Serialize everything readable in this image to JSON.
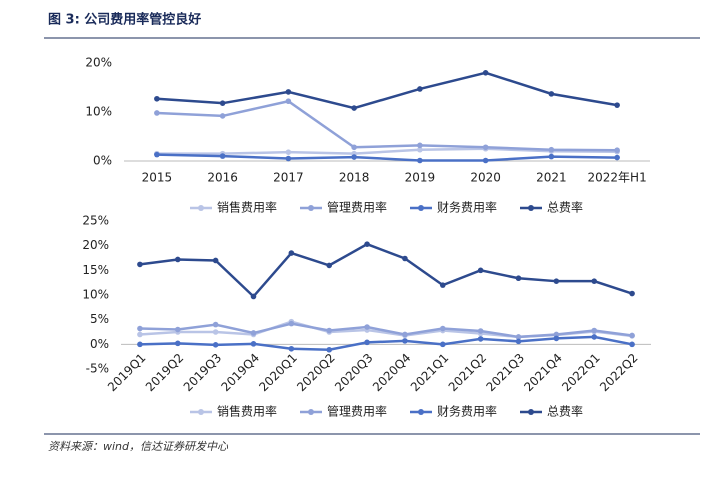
{
  "title": "图 3: 公司费用率管控良好",
  "source": "资料来源：wind，信达证券研发中心",
  "chart_data": [
    {
      "type": "line",
      "categories": [
        "2015",
        "2016",
        "2017",
        "2018",
        "2019",
        "2020",
        "2021",
        "2022年H1"
      ],
      "ylim": [
        0,
        20
      ],
      "yticks": [
        {
          "value": 0,
          "label": "0%"
        },
        {
          "value": 10,
          "label": "10%"
        },
        {
          "value": 20,
          "label": "20%"
        }
      ],
      "legend": "bottom",
      "series": [
        {
          "name": "销售费用率",
          "color": "#b9c4e6",
          "values": [
            1.5,
            1.5,
            1.8,
            1.5,
            2.3,
            2.5,
            2.0,
            1.9
          ]
        },
        {
          "name": "管理费用率",
          "color": "#8fa1d8",
          "values": [
            9.8,
            9.2,
            12.2,
            2.8,
            3.2,
            2.8,
            2.3,
            2.2
          ]
        },
        {
          "name": "财务费用率",
          "color": "#4a70c6",
          "values": [
            1.3,
            1.0,
            0.5,
            0.8,
            0.1,
            0.1,
            0.9,
            0.7
          ]
        },
        {
          "name": "总费率",
          "color": "#2d4a8e",
          "values": [
            12.7,
            11.8,
            14.1,
            10.8,
            14.7,
            18.0,
            13.7,
            11.4
          ]
        }
      ]
    },
    {
      "type": "line",
      "categories": [
        "2019Q1",
        "2019Q2",
        "2019Q3",
        "2019Q4",
        "2020Q1",
        "2020Q2",
        "2020Q3",
        "2020Q4",
        "2021Q1",
        "2021Q2",
        "2021Q3",
        "2021Q4",
        "2022Q1",
        "2022Q2"
      ],
      "ylim": [
        -5,
        25
      ],
      "yticks": [
        {
          "value": -5,
          "label": "-5%"
        },
        {
          "value": 0,
          "label": "0%"
        },
        {
          "value": 5,
          "label": "5%"
        },
        {
          "value": 10,
          "label": "10%"
        },
        {
          "value": 15,
          "label": "15%"
        },
        {
          "value": 20,
          "label": "20%"
        },
        {
          "value": 25,
          "label": "25%"
        }
      ],
      "legend": "bottom",
      "series": [
        {
          "name": "销售费用率",
          "color": "#b9c4e6",
          "values": [
            2.0,
            2.5,
            2.5,
            2.0,
            4.6,
            2.5,
            2.9,
            1.8,
            2.8,
            2.2,
            1.5,
            1.9,
            2.6,
            1.7
          ]
        },
        {
          "name": "管理费用率",
          "color": "#8fa1d8",
          "values": [
            3.2,
            3.0,
            4.0,
            2.3,
            4.2,
            2.8,
            3.5,
            2.0,
            3.2,
            2.7,
            1.5,
            2.0,
            2.8,
            1.8
          ]
        },
        {
          "name": "财务费用率",
          "color": "#4a70c6",
          "values": [
            0.0,
            0.2,
            -0.1,
            0.1,
            -0.9,
            -1.1,
            0.4,
            0.7,
            0.0,
            1.1,
            0.6,
            1.2,
            1.5,
            0.0
          ]
        },
        {
          "name": "总费率",
          "color": "#2d4a8e",
          "values": [
            16.2,
            17.2,
            17.0,
            9.7,
            18.5,
            16.0,
            20.3,
            17.4,
            12.0,
            15.0,
            13.4,
            12.8,
            12.8,
            10.3
          ]
        }
      ]
    }
  ]
}
